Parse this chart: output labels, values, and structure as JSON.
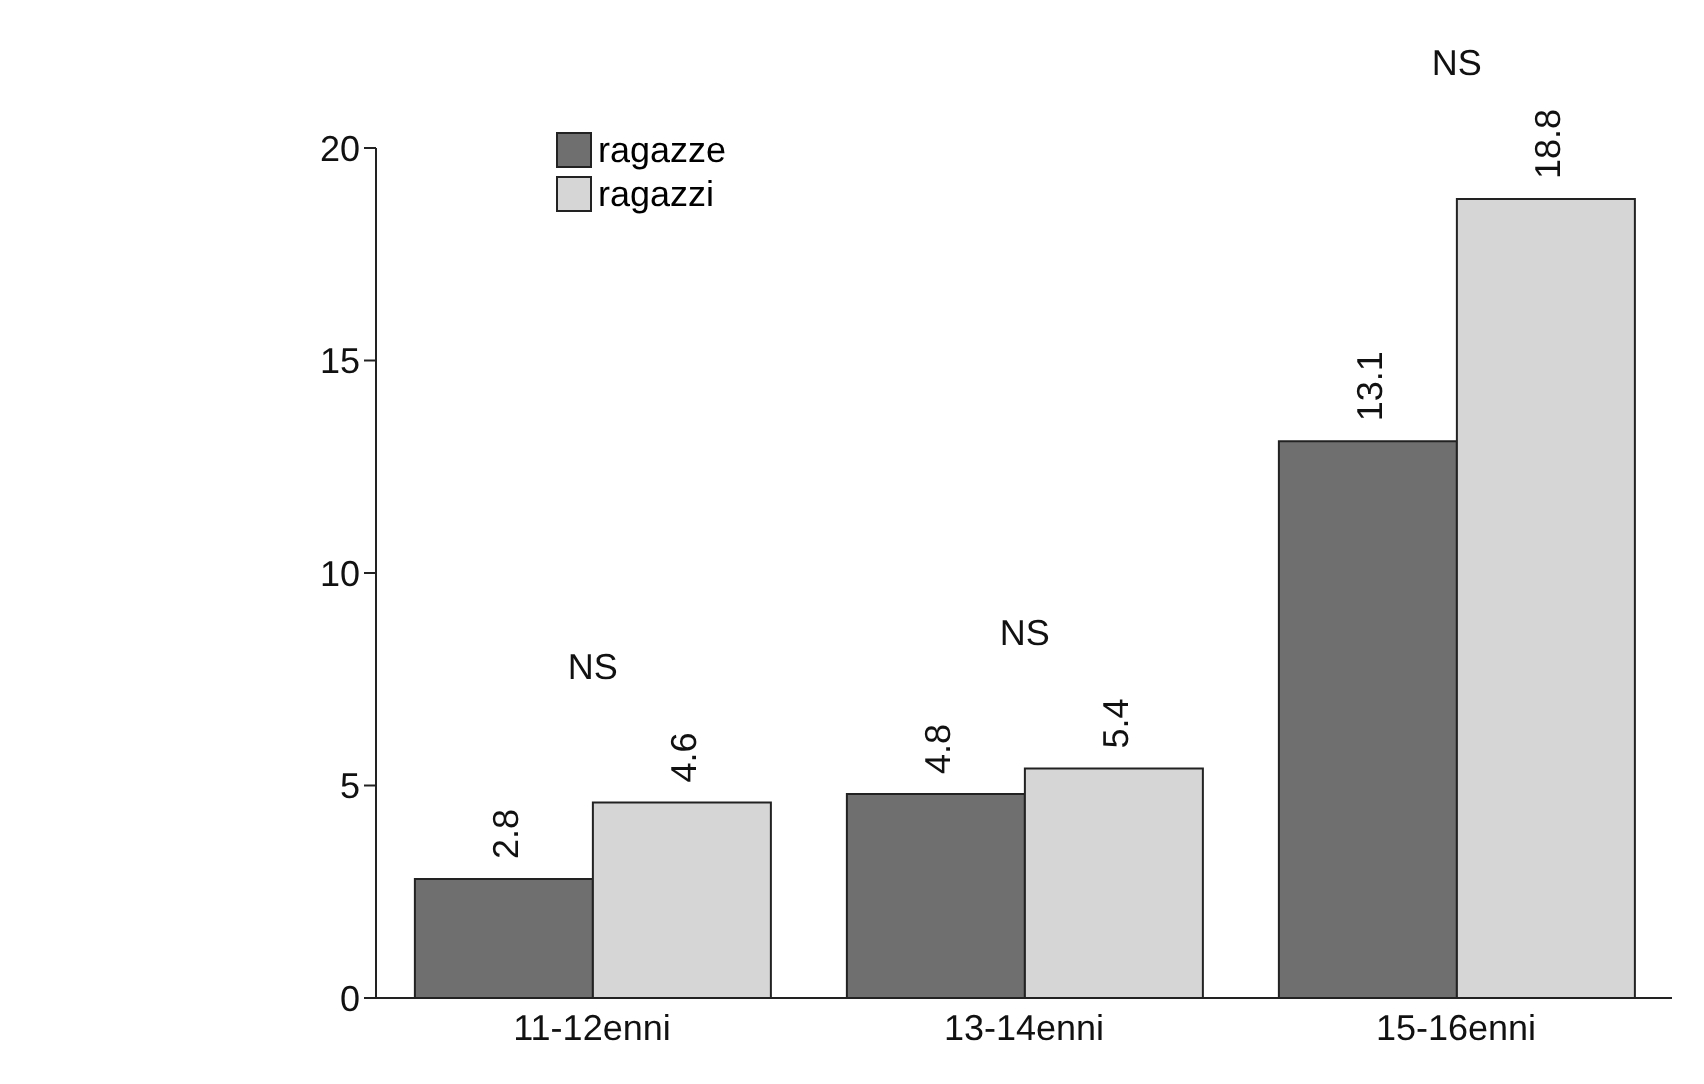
{
  "chart_data": {
    "type": "bar",
    "categories": [
      "11-12enni",
      "13-14enni",
      "15-16enni"
    ],
    "series": [
      {
        "name": "ragazze",
        "color": "#6f6f6f",
        "values": [
          2.8,
          4.8,
          13.1
        ]
      },
      {
        "name": "ragazzi",
        "color": "#d6d6d6",
        "values": [
          4.6,
          5.4,
          18.8
        ]
      }
    ],
    "ylim": [
      0,
      20
    ],
    "yticks": [
      0,
      5,
      10,
      15,
      20
    ],
    "legend": "top",
    "data_labels": true,
    "annotations": [
      "NS",
      "NS",
      "NS"
    ]
  }
}
